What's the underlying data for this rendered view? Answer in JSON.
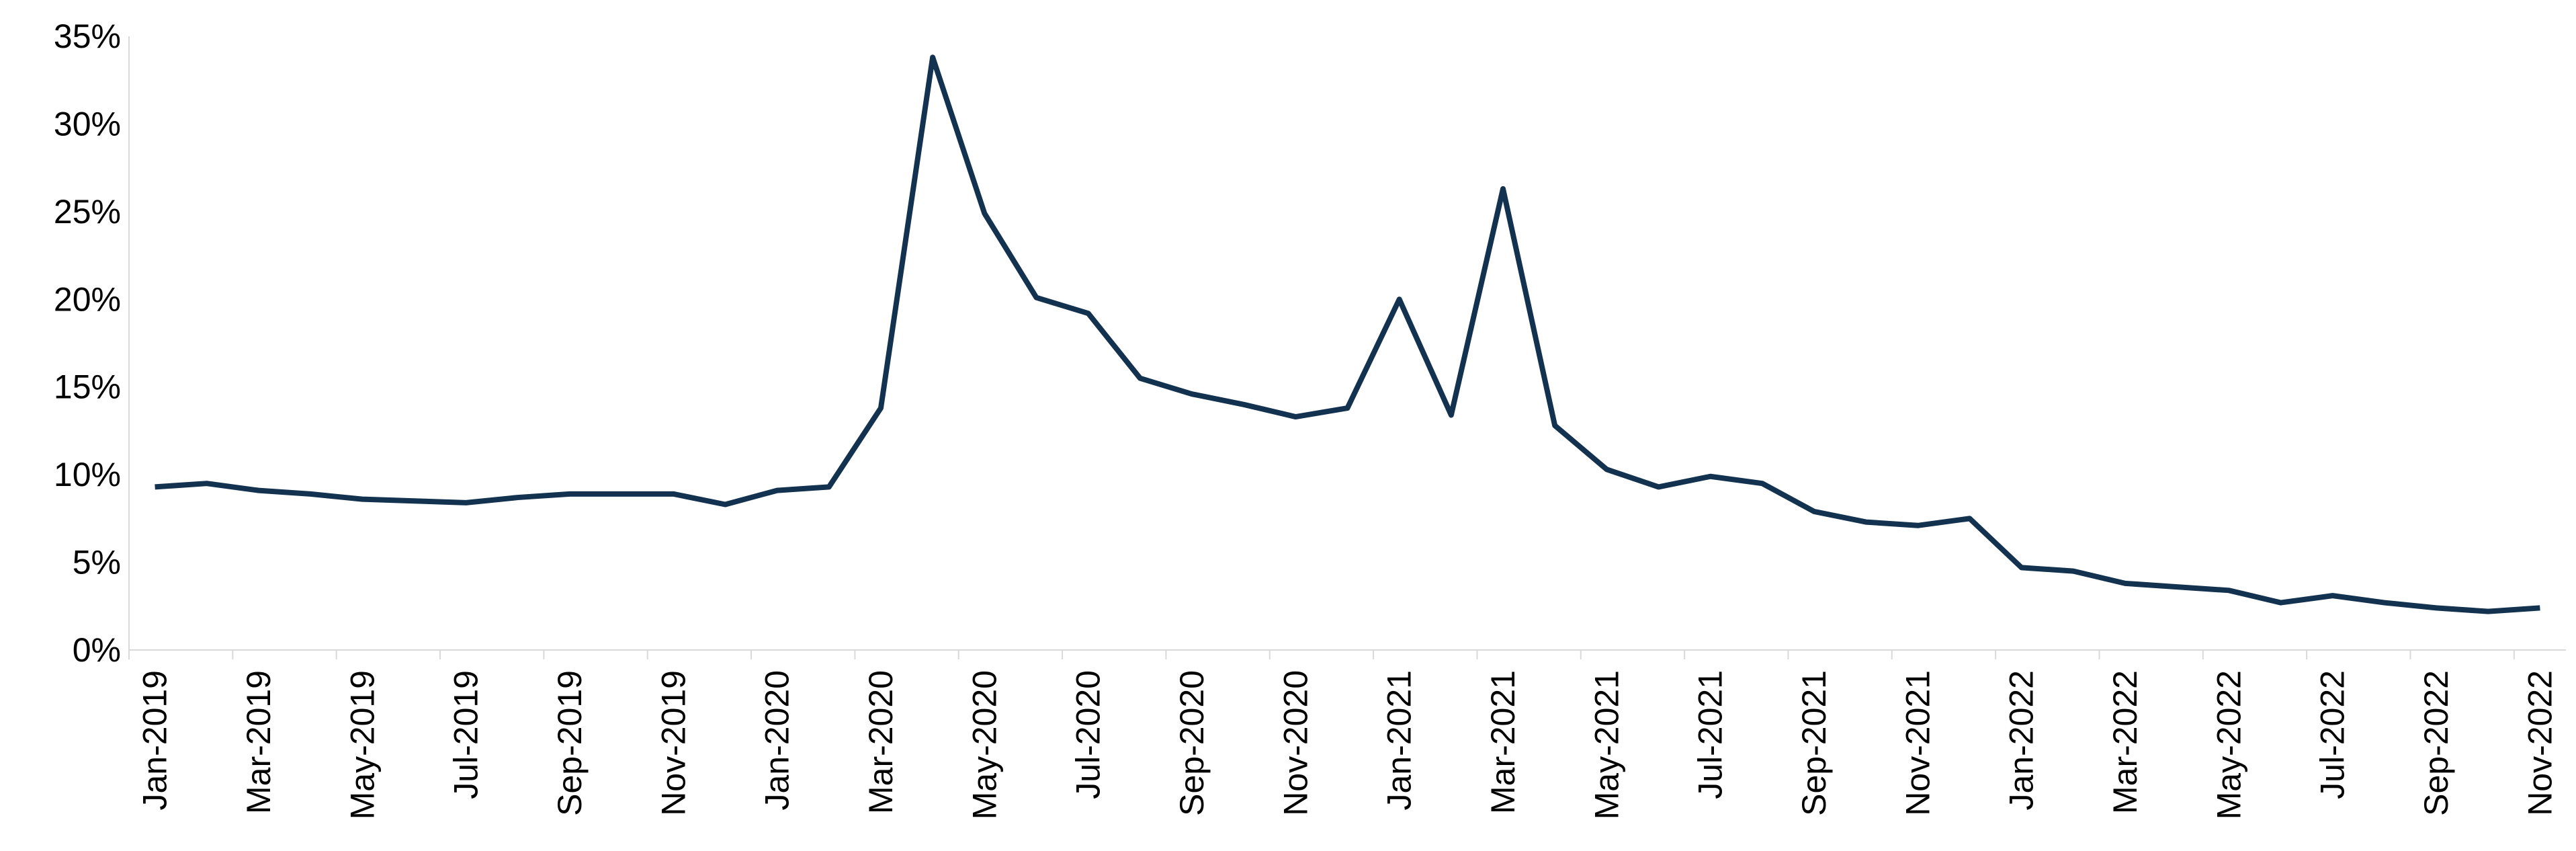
{
  "chart_data": {
    "type": "line",
    "categories": [
      "Jan-2019",
      null,
      "Mar-2019",
      null,
      "May-2019",
      null,
      "Jul-2019",
      null,
      "Sep-2019",
      null,
      "Nov-2019",
      null,
      "Jan-2020",
      null,
      "Mar-2020",
      null,
      "May-2020",
      null,
      "Jul-2020",
      null,
      "Sep-2020",
      null,
      "Nov-2020",
      null,
      "Jan-2021",
      null,
      "Mar-2021",
      null,
      "May-2021",
      null,
      "Jul-2021",
      null,
      "Sep-2021",
      null,
      "Nov-2021",
      null,
      "Jan-2022",
      null,
      "Mar-2022",
      null,
      "May-2022",
      null,
      "Jul-2022",
      null,
      "Sep-2022",
      null,
      "Nov-2022"
    ],
    "series": [
      {
        "color": "#123250",
        "values": [
          9.3,
          9.5,
          9.1,
          8.9,
          8.6,
          8.5,
          8.4,
          8.7,
          8.9,
          8.9,
          8.9,
          8.3,
          9.1,
          9.3,
          13.8,
          33.8,
          24.9,
          20.1,
          19.2,
          15.5,
          14.6,
          14.0,
          13.3,
          13.8,
          20.0,
          13.4,
          26.3,
          12.8,
          10.3,
          9.3,
          9.9,
          9.5,
          7.9,
          7.3,
          7.1,
          7.5,
          4.7,
          4.5,
          3.8,
          3.6,
          3.4,
          2.7,
          3.1,
          2.7,
          2.4,
          2.2,
          2.4
        ]
      }
    ],
    "ylim": [
      0,
      35
    ],
    "yticks": [
      {
        "value": 0,
        "label": "0%"
      },
      {
        "value": 5,
        "label": "5%"
      },
      {
        "value": 10,
        "label": "10%"
      },
      {
        "value": 15,
        "label": "15%"
      },
      {
        "value": 20,
        "label": "20%"
      },
      {
        "value": 25,
        "label": "25%"
      },
      {
        "value": 30,
        "label": "30%"
      },
      {
        "value": 35,
        "label": "35%"
      }
    ],
    "grid": false
  }
}
